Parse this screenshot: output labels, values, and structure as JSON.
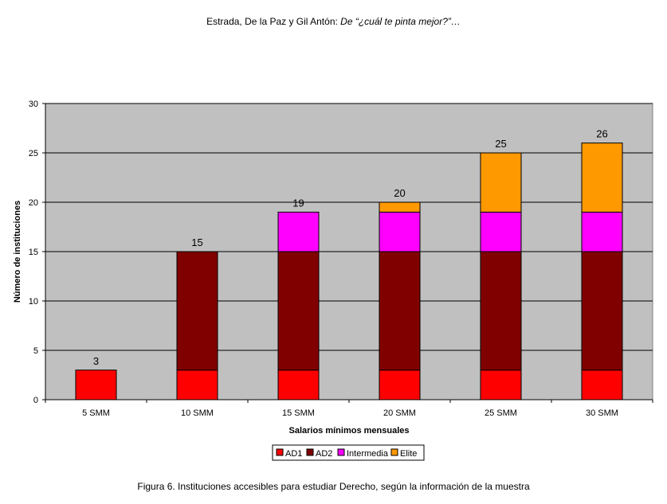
{
  "header": {
    "authors": "Estrada, De la Paz y Gil Antón:",
    "article_title": "De “¿cuál te pinta mejor?”…"
  },
  "caption": "Figura 6. Instituciones accesibles para estudiar Derecho, según la información de la muestra",
  "chart_data": {
    "type": "bar",
    "stacked": true,
    "categories": [
      "5 SMM",
      "10 SMM",
      "15 SMM",
      "20 SMM",
      "25 SMM",
      "30 SMM"
    ],
    "series": [
      {
        "name": "AD1",
        "color": "#ff0000",
        "values": [
          3,
          3,
          3,
          3,
          3,
          3
        ]
      },
      {
        "name": "AD2",
        "color": "#800000",
        "values": [
          0,
          12,
          12,
          12,
          12,
          12
        ]
      },
      {
        "name": "Intermedia",
        "color": "#ff00ff",
        "values": [
          0,
          0,
          4,
          4,
          4,
          4
        ]
      },
      {
        "name": "Elite",
        "color": "#ff9900",
        "values": [
          0,
          0,
          0,
          1,
          6,
          7
        ]
      }
    ],
    "totals": [
      3,
      15,
      19,
      20,
      25,
      26
    ],
    "xlabel": "Salarios mínimos mensuales",
    "ylabel": "Número de instituciones",
    "ylim": [
      0,
      30
    ],
    "yticks": [
      0,
      5,
      10,
      15,
      20,
      25,
      30
    ],
    "grid": true,
    "plot_background": "#c0c0c0",
    "legend_position": "bottom"
  }
}
